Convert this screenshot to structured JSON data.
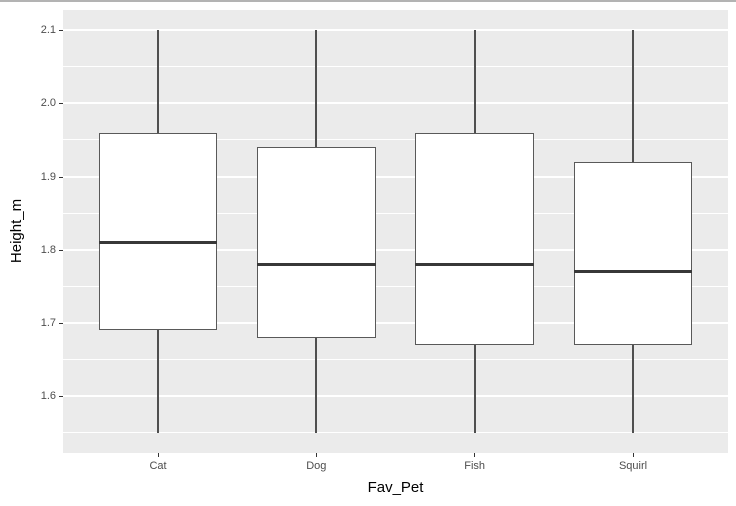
{
  "chart_data": {
    "type": "boxplot",
    "title": "",
    "xlabel": "Fav_Pet",
    "ylabel": "Height_m",
    "categories": [
      "Cat",
      "Dog",
      "Fish",
      "Squirl"
    ],
    "series": [
      {
        "name": "Cat",
        "whisker_min": 1.55,
        "q1": 1.69,
        "median": 1.81,
        "q3": 1.96,
        "whisker_max": 2.1
      },
      {
        "name": "Dog",
        "whisker_min": 1.55,
        "q1": 1.68,
        "median": 1.78,
        "q3": 1.94,
        "whisker_max": 2.1
      },
      {
        "name": "Fish",
        "whisker_min": 1.55,
        "q1": 1.67,
        "median": 1.78,
        "q3": 1.96,
        "whisker_max": 2.1
      },
      {
        "name": "Squirl",
        "whisker_min": 1.55,
        "q1": 1.67,
        "median": 1.77,
        "q3": 1.92,
        "whisker_max": 2.1
      }
    ],
    "y_ticks": [
      {
        "value": 1.6,
        "label": "1.6"
      },
      {
        "value": 1.7,
        "label": "1.7"
      },
      {
        "value": 1.8,
        "label": "1.8"
      },
      {
        "value": 1.9,
        "label": "1.9"
      },
      {
        "value": 2.0,
        "label": "2.0"
      },
      {
        "value": 2.1,
        "label": "2.1"
      }
    ],
    "y_minor_ticks": [
      1.55,
      1.65,
      1.75,
      1.85,
      1.95,
      2.05
    ],
    "ylim": [
      1.5225,
      2.1275
    ],
    "grid": true,
    "legend": false,
    "style": "ggplot2-grey"
  },
  "colors": {
    "panel_background": "#EBEBEB",
    "gridline": "#FFFFFF",
    "box_fill": "#FFFFFF",
    "box_border": "#595959",
    "median_line": "#383838",
    "whisker": "#4F4F4F",
    "tick_text": "#4D4D4D",
    "axis_title_text": "#000000",
    "tick_mark": "#333333",
    "top_border": "#B3B3B3"
  }
}
